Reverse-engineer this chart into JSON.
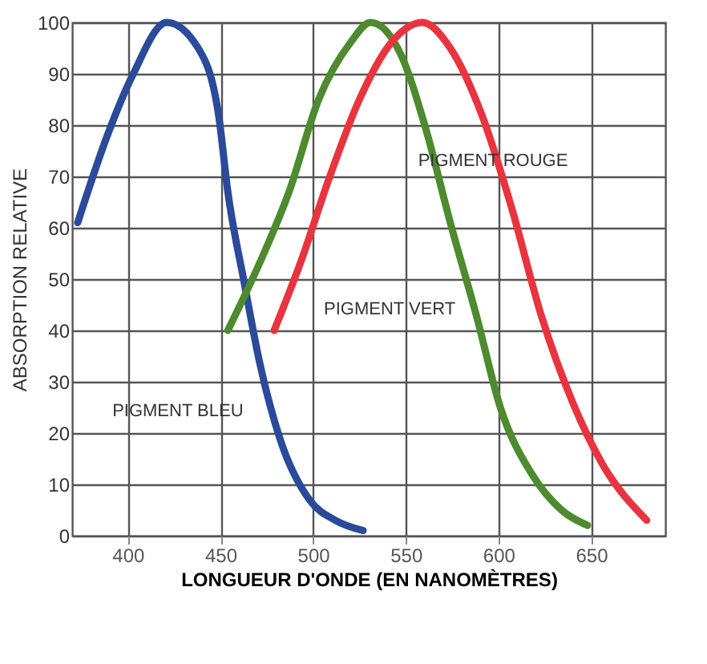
{
  "chart_data": {
    "type": "line",
    "xlabel": "LONGUEUR D'ONDE (EN NANOMÈTRES)",
    "ylabel": "ABSORPTION RELATIVE",
    "xlim": [
      370,
      690
    ],
    "xticks": [
      400,
      450,
      500,
      550,
      600,
      650
    ],
    "ylim": [
      0,
      100
    ],
    "yticks": [
      0,
      10,
      20,
      30,
      40,
      50,
      60,
      70,
      80,
      90,
      100
    ],
    "grid": true,
    "marker": "none",
    "line_style": "solid",
    "series": [
      {
        "color": "#2b4a9a",
        "x": [
          373,
          389,
          403,
          421,
          438,
          449,
          454,
          463,
          471,
          482,
          498,
          512,
          527
        ],
        "values": [
          61,
          78,
          90,
          100,
          95,
          82,
          67,
          49,
          34,
          19,
          7,
          3,
          1
        ]
      },
      {
        "color": "#4e8a2e",
        "x": [
          454,
          471,
          487,
          503,
          520,
          531,
          547,
          561,
          574,
          588,
          601,
          618,
          634,
          648
        ],
        "values": [
          40,
          53,
          67,
          85,
          96,
          100,
          94,
          79,
          61,
          43,
          25,
          12,
          5,
          2
        ]
      },
      {
        "color": "#e8343f",
        "x": [
          479,
          493,
          509,
          525,
          542,
          559,
          574,
          591,
          607,
          623,
          640,
          656,
          680
        ],
        "values": [
          40,
          53,
          70,
          85,
          96,
          100,
          95,
          82,
          64,
          43,
          26,
          14,
          3
        ]
      }
    ],
    "annotations": [
      {
        "text": "PIGMENT BLEU",
        "x": 471,
        "y": 28
      },
      {
        "text": "PIGMENT VERT",
        "x": 582,
        "y": 46
      },
      {
        "text": "PIGMENT ROUGE",
        "x": 610,
        "y": 63
      }
    ]
  }
}
